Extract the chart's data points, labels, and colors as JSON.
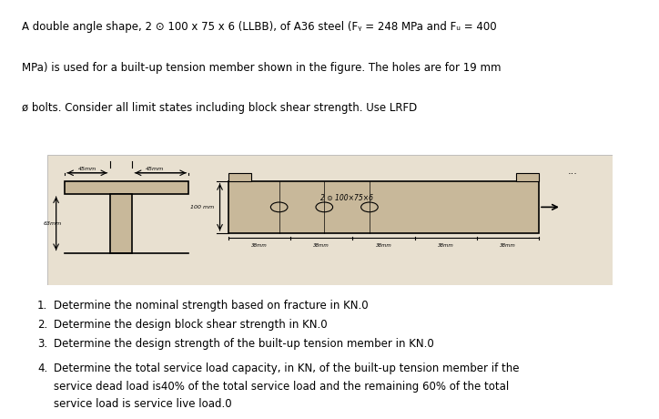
{
  "title_text": "A double angle shape, 2 ⊙ 100 x 75 x 6 (LLBB), of A36 steel (Fᵧ = 248 MPa and Fᵤ = 400\nMPa) is used for a built-up tension member shown in the figure. The holes are for 19 mm\nø bolts. Consider all limit states including block shear strength. Use LRFD",
  "items": [
    "Determine the nominal strength based on fracture in KN.0",
    "Determine the design block shear strength in KN.0",
    "Determine the design strength of the built-up tension member in KN.0"
  ],
  "item4": "Determine the total service load capacity, in KN, of the built-up tension member if the\nservice dead load is40% of the total service load and the remaining 60% of the total\nservice load is service live load.0",
  "bg_color": "#f0ece4",
  "diagram_bg": "#e8e0d0",
  "fig_bg": "#ffffff"
}
